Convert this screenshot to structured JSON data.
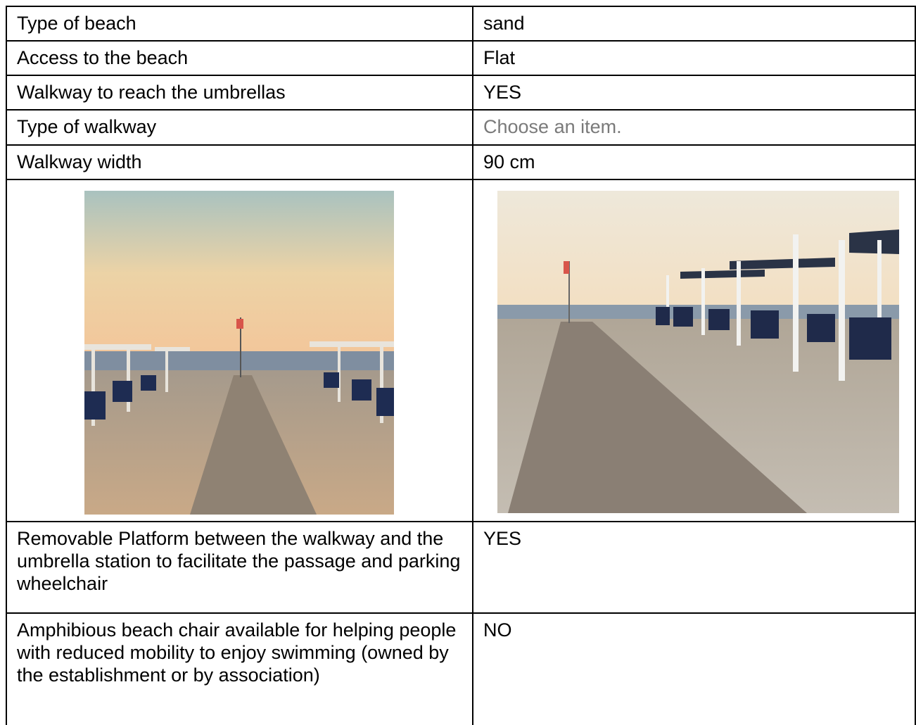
{
  "table": {
    "rows": [
      [
        "Type of beach",
        "sand"
      ],
      [
        "Access to the beach",
        "Flat"
      ],
      [
        "Walkway to reach the umbrellas",
        "YES"
      ],
      [
        "Type of walkway",
        "Choose an item."
      ],
      [
        "Walkway width",
        "90 cm"
      ],
      [
        "Removable Platform between the walkway and the umbrella station to facilitate the passage and parking wheelchair",
        "YES"
      ],
      [
        "Amphibious beach chair available for helping people with reduced mobility to enjoy swimming (owned by the establishment or by association)",
        "NO"
      ]
    ]
  }
}
